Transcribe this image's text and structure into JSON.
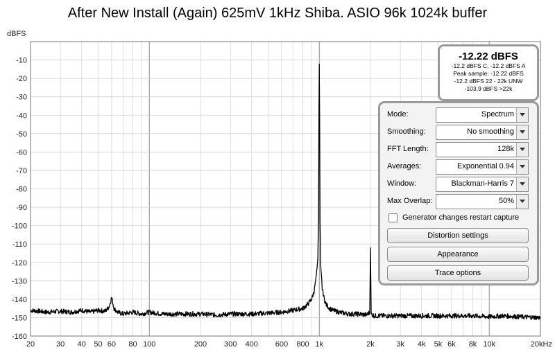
{
  "chart_data": {
    "type": "line",
    "title": "After New Install (Again) 625mV 1kHz Shiba. ASIO 96k 1024k buffer",
    "ylabel": "dBFS",
    "xlabel": "",
    "x_scale": "log",
    "xlim": [
      20,
      20000
    ],
    "ylim": [
      -160,
      0
    ],
    "x_ticks": [
      {
        "value": 20,
        "label": "20"
      },
      {
        "value": 30,
        "label": "30"
      },
      {
        "value": 40,
        "label": "40"
      },
      {
        "value": 50,
        "label": "50"
      },
      {
        "value": 60,
        "label": "60"
      },
      {
        "value": 80,
        "label": "80"
      },
      {
        "value": 100,
        "label": "100"
      },
      {
        "value": 200,
        "label": "200"
      },
      {
        "value": 300,
        "label": "300"
      },
      {
        "value": 400,
        "label": "400"
      },
      {
        "value": 600,
        "label": "600"
      },
      {
        "value": 800,
        "label": "800"
      },
      {
        "value": 1000,
        "label": "1k"
      },
      {
        "value": 2000,
        "label": "2k"
      },
      {
        "value": 3000,
        "label": "3k"
      },
      {
        "value": 4000,
        "label": "4k"
      },
      {
        "value": 5000,
        "label": "5k"
      },
      {
        "value": 6000,
        "label": "6k"
      },
      {
        "value": 8000,
        "label": "8k"
      },
      {
        "value": 10000,
        "label": "10k"
      },
      {
        "value": 20000,
        "label": "20kHz"
      }
    ],
    "y_ticks": [
      -10,
      -20,
      -30,
      -40,
      -50,
      -60,
      -70,
      -80,
      -90,
      -100,
      -110,
      -120,
      -130,
      -140,
      -150,
      -160
    ],
    "grid": true,
    "series": [
      {
        "color": "#000000",
        "x": [
          20,
          25,
          30,
          35,
          40,
          45,
          50,
          55,
          58,
          60,
          62,
          65,
          70,
          80,
          90,
          100,
          120,
          150,
          200,
          250,
          300,
          400,
          500,
          600,
          700,
          800,
          850,
          900,
          930,
          960,
          980,
          990,
          995,
          1000,
          1005,
          1010,
          1020,
          1040,
          1070,
          1100,
          1150,
          1200,
          1300,
          1500,
          1700,
          1900,
          1980,
          2000,
          2020,
          2100,
          2500,
          3000,
          4000,
          5000,
          6000,
          8000,
          10000,
          12000,
          15000,
          20000
        ],
        "y": [
          -146,
          -147,
          -146.5,
          -147,
          -146,
          -147,
          -146,
          -146.5,
          -144,
          -139,
          -145,
          -147,
          -148,
          -147,
          -148,
          -147,
          -148,
          -148,
          -148,
          -148.5,
          -148,
          -148,
          -147.5,
          -147,
          -146,
          -145,
          -143,
          -140,
          -136,
          -128,
          -118,
          -95,
          -40,
          -12.2,
          -45,
          -98,
          -122,
          -134,
          -140,
          -143,
          -145,
          -146,
          -147,
          -148,
          -148,
          -148.5,
          -147,
          -112,
          -148,
          -149,
          -149,
          -149,
          -149,
          -149,
          -149,
          -149,
          -149.5,
          -149,
          -149.5,
          -150
        ]
      }
    ]
  },
  "readout": {
    "main": "-12.22 dBFS",
    "lines": [
      "-12.2 dBFS C, -12.2 dBFS A",
      "Peak sample: -12.22 dBFS",
      "-12.2 dBFS 22 - 22k UNW",
      "-103.9 dBFS >22k"
    ]
  },
  "controls": {
    "rows": [
      {
        "label": "Mode:",
        "value": "Spectrum"
      },
      {
        "label": "Smoothing:",
        "value": "No  smoothing"
      },
      {
        "label": "FFT Length:",
        "value": "128k"
      },
      {
        "label": "Averages:",
        "value": "Exponential 0.94"
      },
      {
        "label": "Window:",
        "value": "Blackman-Harris 7"
      },
      {
        "label": "Max Overlap:",
        "value": "50%"
      }
    ],
    "generator_checkbox": "Generator changes restart capture",
    "buttons": [
      "Distortion settings",
      "Appearance",
      "Trace options"
    ]
  }
}
